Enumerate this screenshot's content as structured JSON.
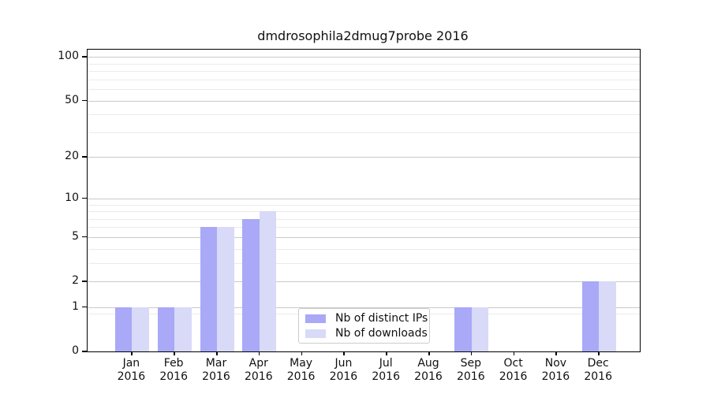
{
  "title": "dmdrosophila2dmug7probe 2016",
  "legend": {
    "items": [
      {
        "label": "Nb of distinct IPs",
        "color": "#a9a9f7"
      },
      {
        "label": "Nb of downloads",
        "color": "#d9d9f8"
      }
    ]
  },
  "colors": {
    "series_distinct_ips": "#a9a9f7",
    "series_downloads": "#d9d9f8",
    "major_grid": "#c9c9c9",
    "minor_grid": "#ebebeb",
    "spine": "#000000",
    "legend_border": "#cccccc",
    "background": "#ffffff"
  },
  "chart_data": {
    "type": "bar",
    "title": "dmdrosophila2dmug7probe 2016",
    "x_months": [
      "Jan",
      "Feb",
      "Mar",
      "Apr",
      "May",
      "Jun",
      "Jul",
      "Aug",
      "Sep",
      "Oct",
      "Nov",
      "Dec"
    ],
    "x_year": "2016",
    "categories": [
      "Jan 2016",
      "Feb 2016",
      "Mar 2016",
      "Apr 2016",
      "May 2016",
      "Jun 2016",
      "Jul 2016",
      "Aug 2016",
      "Sep 2016",
      "Oct 2016",
      "Nov 2016",
      "Dec 2016"
    ],
    "series": [
      {
        "name": "Nb of distinct IPs",
        "color": "#a9a9f7",
        "values": [
          1,
          1,
          6,
          7,
          0,
          0,
          0,
          0,
          1,
          0,
          0,
          2
        ]
      },
      {
        "name": "Nb of downloads",
        "color": "#d9d9f8",
        "values": [
          1,
          1,
          6,
          8,
          0,
          0,
          0,
          0,
          1,
          0,
          0,
          2
        ]
      }
    ],
    "yscale": "log1p",
    "ylabel": "",
    "xlabel": "",
    "y_major_ticks": [
      0,
      1,
      2,
      5,
      10,
      20,
      50,
      100
    ],
    "y_minor_ticks": [
      0.8,
      3,
      4,
      6,
      7,
      8,
      9,
      30,
      40,
      60,
      70,
      80,
      90
    ],
    "ylim": [
      0,
      113
    ],
    "grid": true,
    "legend_position": "lower-center"
  }
}
